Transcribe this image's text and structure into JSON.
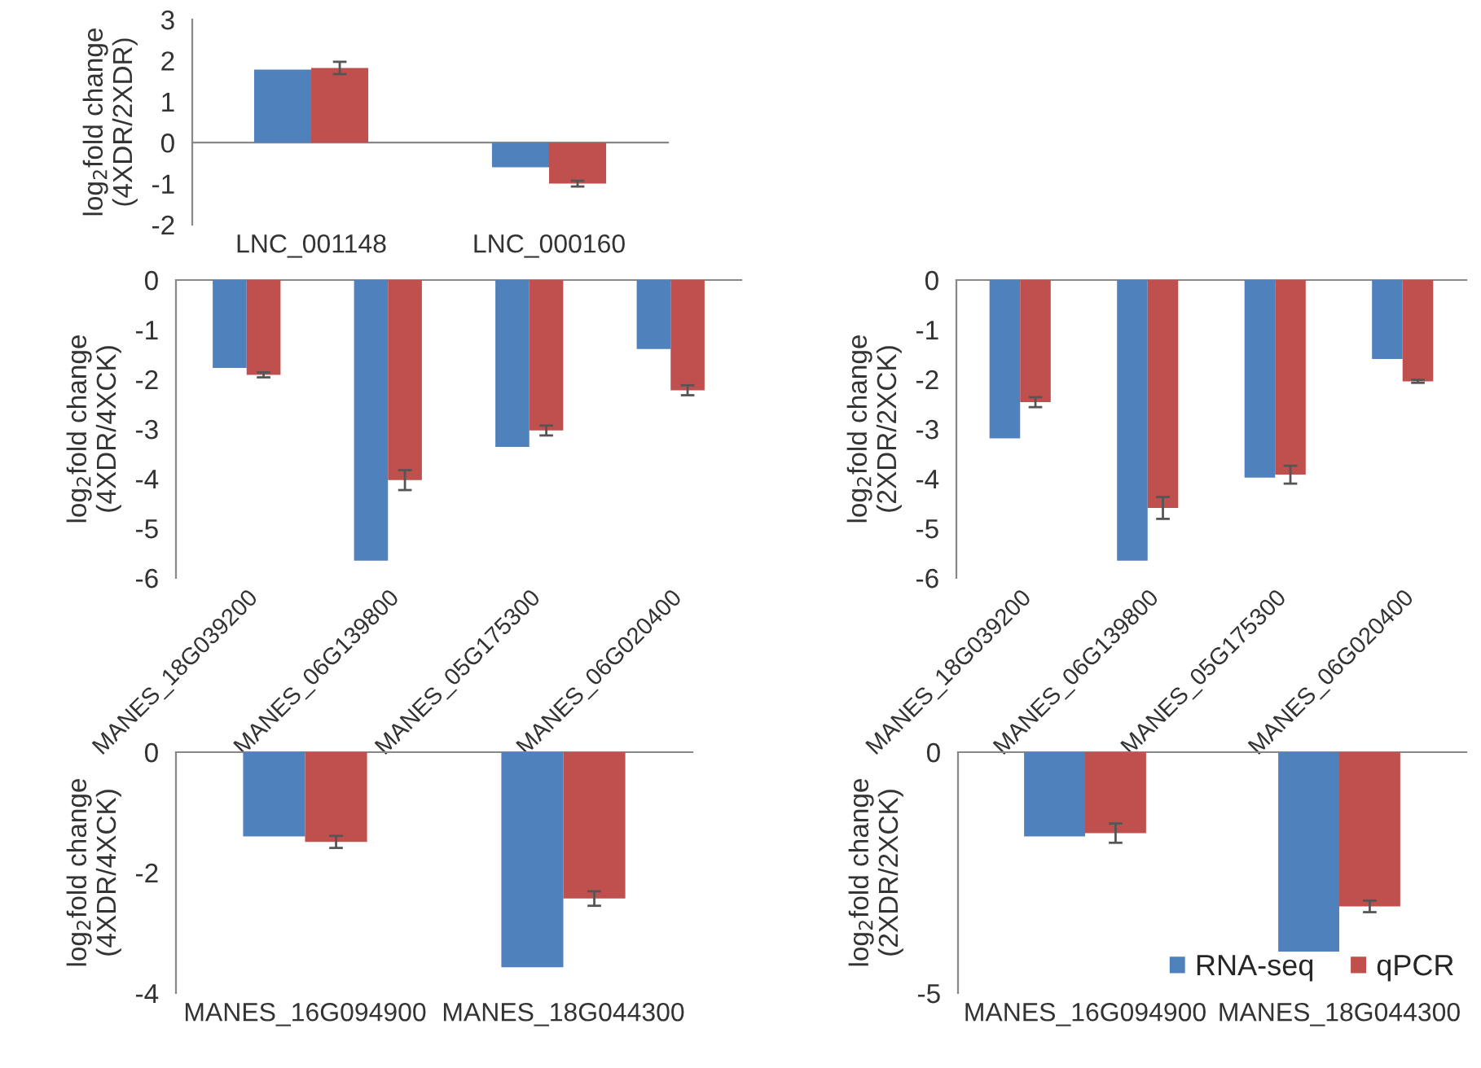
{
  "chart_data": [
    {
      "type": "bar",
      "ylabel": "log$_{2}$fold change\n(4XDR/2XDR)",
      "categories": [
        "LNC_001148",
        "LNC_000160"
      ],
      "ylim": [
        -2,
        3
      ],
      "yticks": [
        -2,
        -1,
        0,
        1,
        2,
        3
      ],
      "legend": false,
      "series": [
        {
          "color": "#4f81bd",
          "values": [
            1.78,
            -0.6
          ]
        },
        {
          "color": "#c0504d",
          "values": [
            1.82,
            -1.0
          ],
          "errors": [
            0.15,
            0.07
          ]
        }
      ]
    },
    {
      "type": "bar",
      "ylabel": "log$_{2}$fold change\n(4XDR/4XCK)",
      "categories": [
        "MANES_18G039200",
        "MANES_06G139800",
        "MANES_05G175300",
        "MANES_06G020400"
      ],
      "ylim": [
        -6,
        0
      ],
      "yticks": [
        -6,
        -5,
        -4,
        -3,
        -2,
        -1,
        0
      ],
      "grid": false,
      "legend": false,
      "series": [
        {
          "color": "#4f81bd",
          "values": [
            -1.77,
            -5.65,
            -3.36,
            -1.39
          ]
        },
        {
          "color": "#c0504d",
          "values": [
            -1.91,
            -4.03,
            -3.03,
            -2.22
          ],
          "errors": [
            0.05,
            0.2,
            0.1,
            0.1
          ]
        }
      ]
    },
    {
      "type": "bar",
      "ylabel": "log$_{2}$fold change\n(2XDR/2XCK)",
      "categories": [
        "MANES_18G039200",
        "MANES_06G139800",
        "MANES_05G175300",
        "MANES_06G020400"
      ],
      "ylim": [
        -6,
        0
      ],
      "yticks": [
        -6,
        -5,
        -4,
        -3,
        -2,
        -1,
        0
      ],
      "grid": false,
      "legend": false,
      "series": [
        {
          "color": "#4f81bd",
          "values": [
            -3.19,
            -5.65,
            -3.98,
            -1.59
          ]
        },
        {
          "color": "#c0504d",
          "values": [
            -2.46,
            -4.59,
            -3.92,
            -2.04
          ],
          "errors": [
            0.1,
            0.22,
            0.18,
            0.03
          ]
        }
      ]
    },
    {
      "type": "bar",
      "ylabel": "log$_{2}$fold change\n(4XDR/4XCK)",
      "categories": [
        "MANES_16G094900",
        "MANES_18G044300"
      ],
      "ylim": [
        -4,
        0
      ],
      "yticks": [
        -4,
        -2,
        0
      ],
      "grid": false,
      "legend": false,
      "series": [
        {
          "color": "#4f81bd",
          "values": [
            -1.4,
            -3.57
          ]
        },
        {
          "color": "#c0504d",
          "values": [
            -1.49,
            -2.43
          ],
          "errors": [
            0.1,
            0.12
          ]
        }
      ]
    },
    {
      "type": "bar",
      "ylabel": "log$_{2}$fold change\n(2XDR/2XCK)",
      "categories": [
        "MANES_16G094900",
        "MANES_18G044300"
      ],
      "ylim": [
        -5,
        0
      ],
      "yticks": [
        -5,
        0
      ],
      "grid": false,
      "legend": "bottom right",
      "series": [
        {
          "name": "RNA-seq",
          "color": "#4f81bd",
          "values": [
            -1.75,
            -4.14
          ]
        },
        {
          "name": "qPCR",
          "color": "#c0504d",
          "values": [
            -1.68,
            -3.2
          ],
          "errors": [
            0.2,
            0.12
          ]
        }
      ]
    }
  ]
}
